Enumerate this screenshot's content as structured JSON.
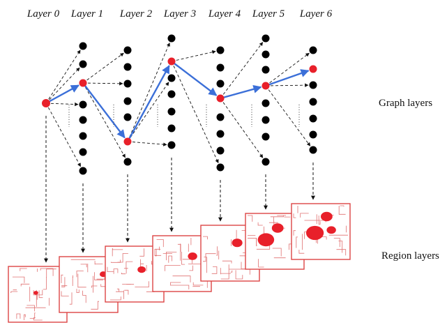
{
  "layers": [
    "Layer 0",
    "Layer 1",
    "Layer 2",
    "Layer 3",
    "Layer 4",
    "Layer 5",
    "Layer 6"
  ],
  "graph_label": "Graph layers",
  "region_label": "Region layers"
}
